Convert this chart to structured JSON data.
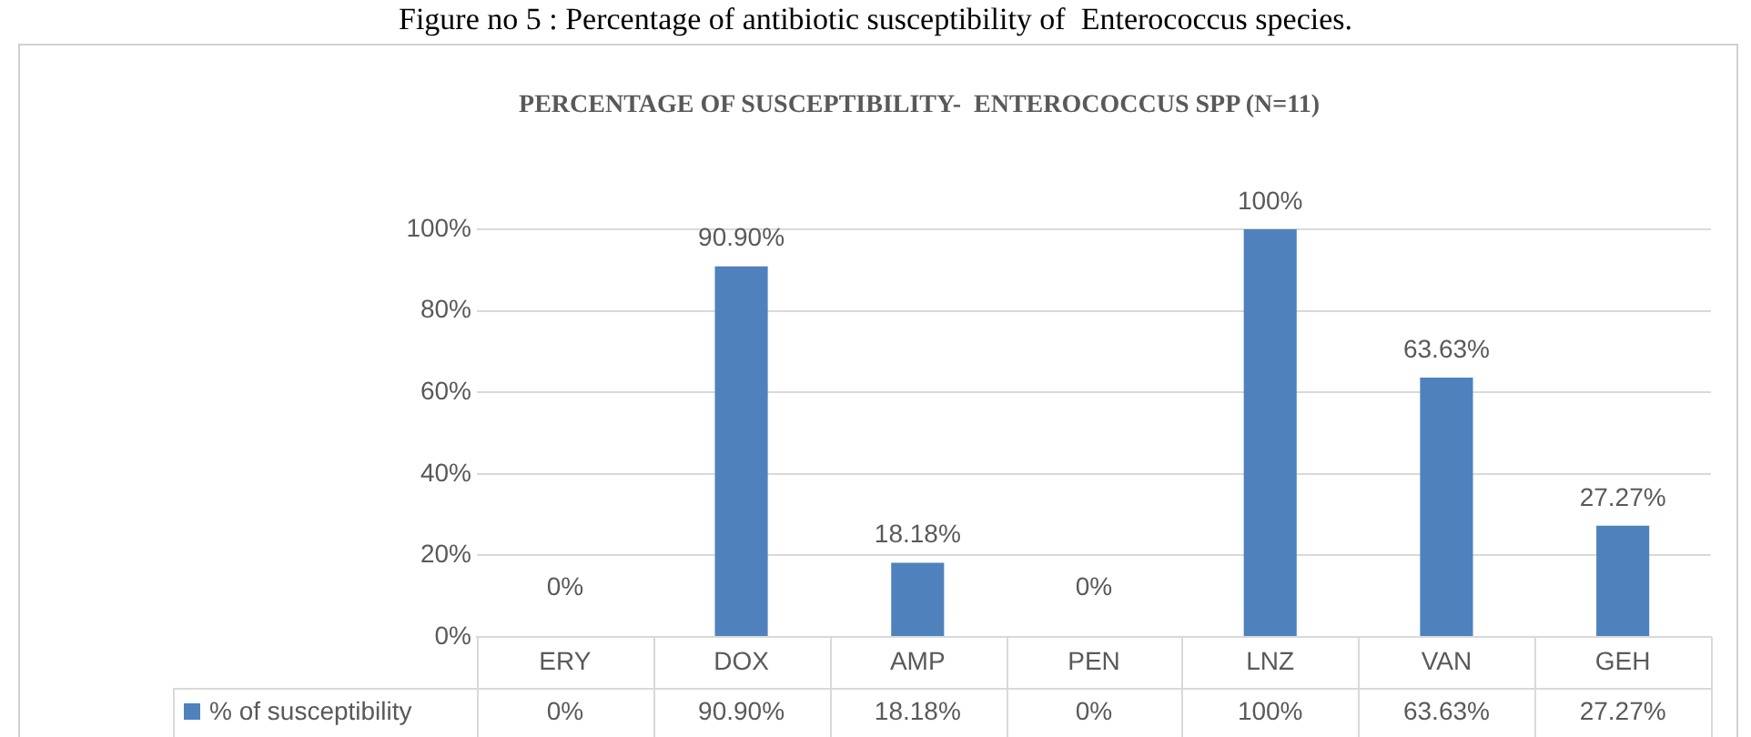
{
  "chart_data": {
    "type": "bar",
    "title": "PERCENTAGE OF SUSCEPTIBILITY-  ENTEROCOCCUS SPP (N=11)",
    "annotations": [
      "Figure no 5 : Percentage of antibiotic susceptibility of  Enterococcus species."
    ],
    "categories": [
      "ERY",
      "DOX",
      "AMP",
      "PEN",
      "LNZ",
      "VAN",
      "GEH"
    ],
    "series": [
      {
        "name": "% of susceptibility",
        "color": "#4f81bd",
        "values": [
          0,
          90.9,
          18.18,
          0,
          100,
          63.63,
          27.27
        ],
        "value_labels": [
          "0%",
          "90.90%",
          "18.18%",
          "0%",
          "100%",
          "63.63%",
          "27.27%"
        ]
      }
    ],
    "ylim": [
      0,
      100
    ],
    "yticks": [
      {
        "value": 0,
        "label": "0%"
      },
      {
        "value": 20,
        "label": "20%"
      },
      {
        "value": 40,
        "label": "40%"
      },
      {
        "value": 60,
        "label": "60%"
      },
      {
        "value": 80,
        "label": "80%"
      },
      {
        "value": 100,
        "label": "100%"
      }
    ],
    "grid": "y",
    "legend": "bottom"
  }
}
